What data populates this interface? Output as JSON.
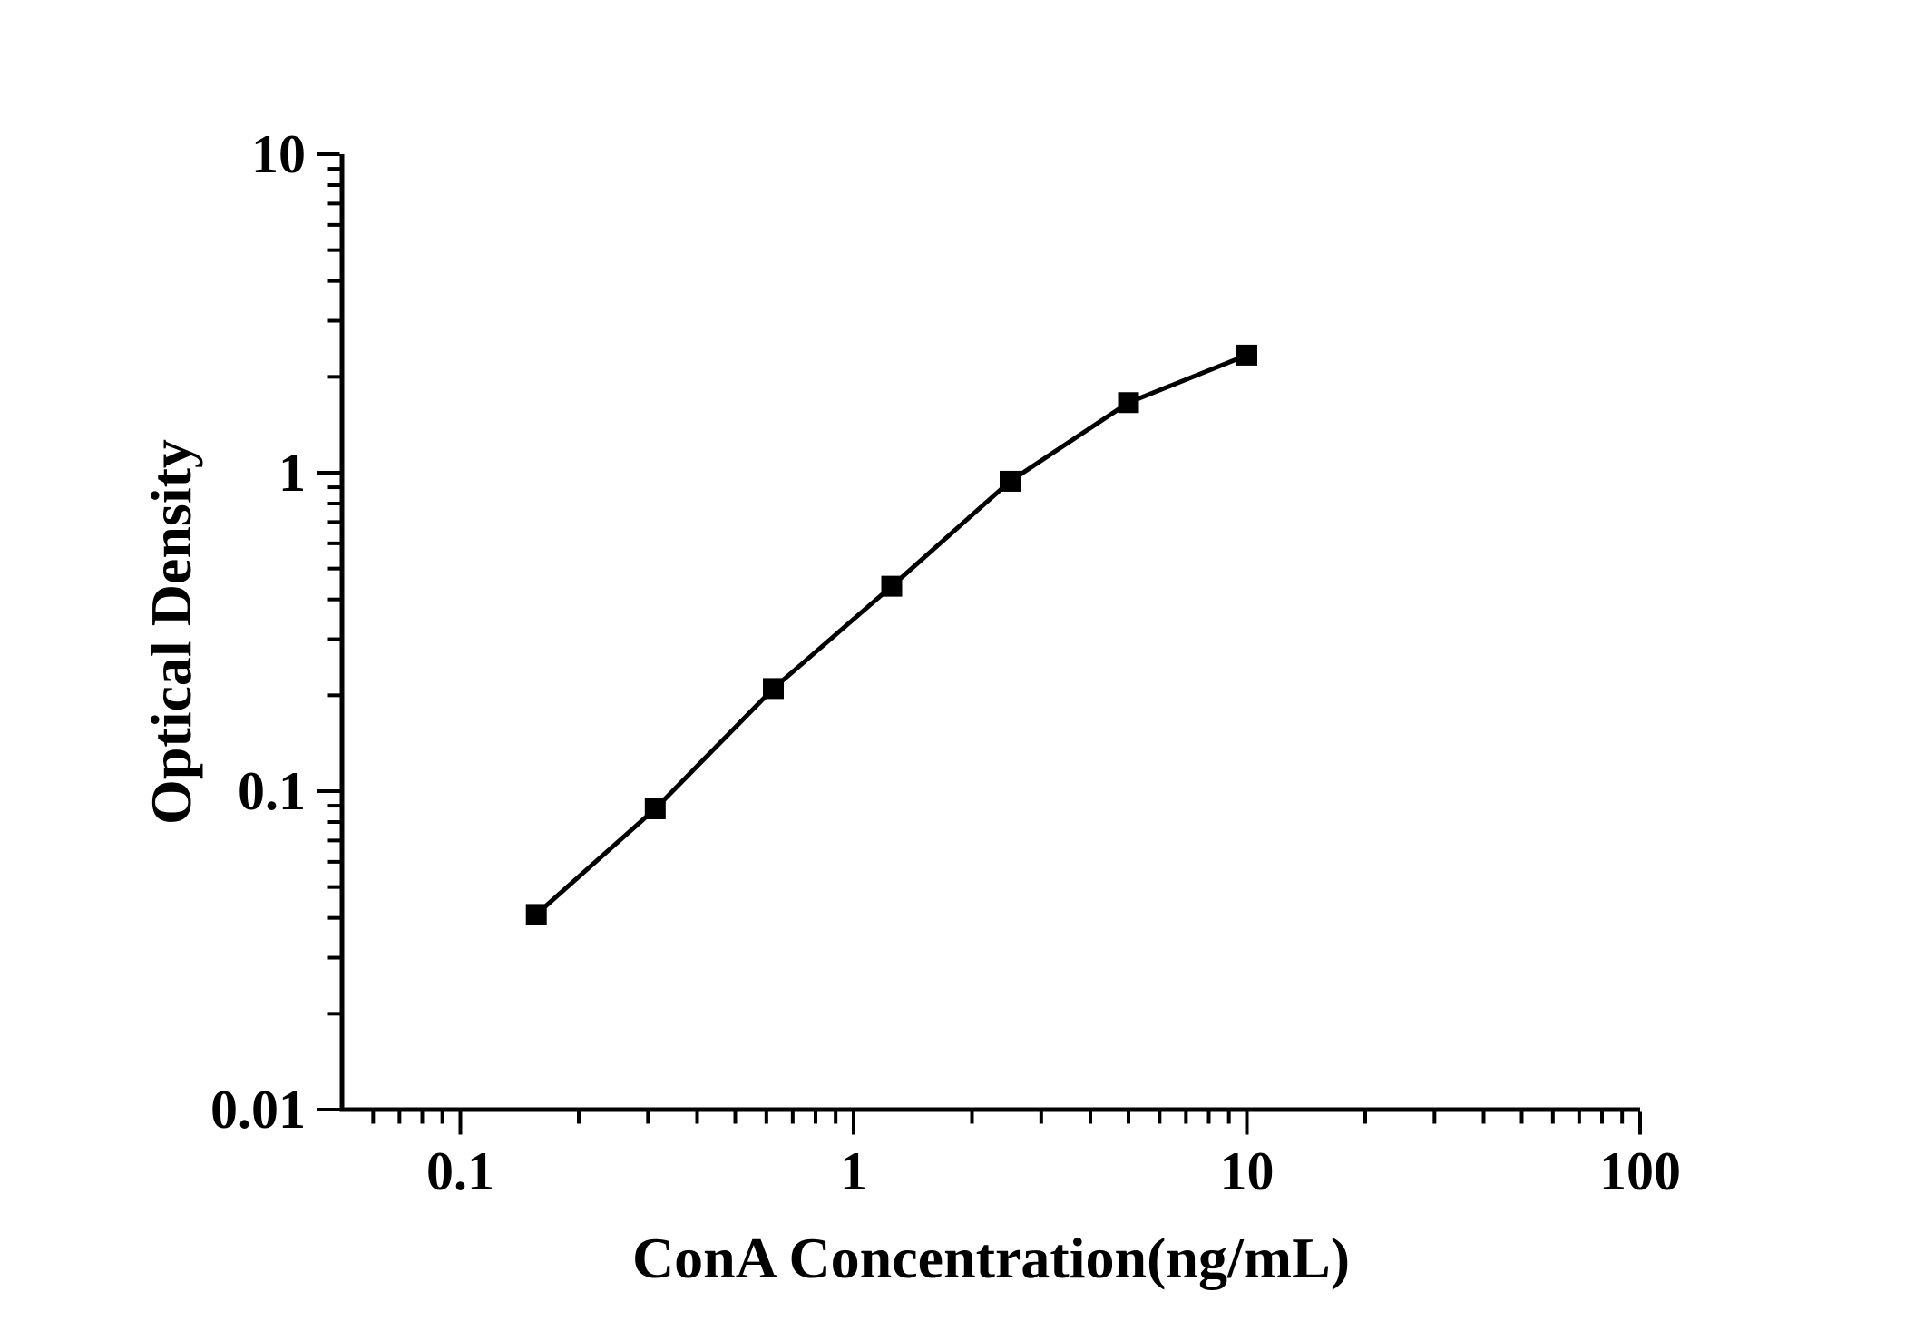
{
  "figure": {
    "background_color": "#ffffff",
    "foreground_color": "#000000"
  },
  "chart_data": {
    "type": "line",
    "title": "",
    "xlabel": "ConA Concentration(ng/mL)",
    "ylabel": "Optical Density",
    "x_scale": "log",
    "y_scale": "log",
    "xlim": [
      0.05,
      100
    ],
    "ylim": [
      0.01,
      10
    ],
    "x_ticks": [
      0.1,
      1,
      10,
      100
    ],
    "x_tick_labels": [
      "0.1",
      "1",
      "10",
      "100"
    ],
    "y_ticks": [
      0.01,
      0.1,
      1,
      10
    ],
    "y_tick_labels": [
      "0.01",
      "0.1",
      "1",
      "10"
    ],
    "grid": false,
    "legend": false,
    "marker": "filled-square",
    "line_color": "#000000",
    "marker_color": "#000000",
    "series": [
      {
        "name": "",
        "x": [
          0.156,
          0.313,
          0.625,
          1.25,
          2.5,
          5,
          10
        ],
        "y": [
          0.041,
          0.088,
          0.21,
          0.44,
          0.94,
          1.66,
          2.34
        ]
      }
    ]
  }
}
